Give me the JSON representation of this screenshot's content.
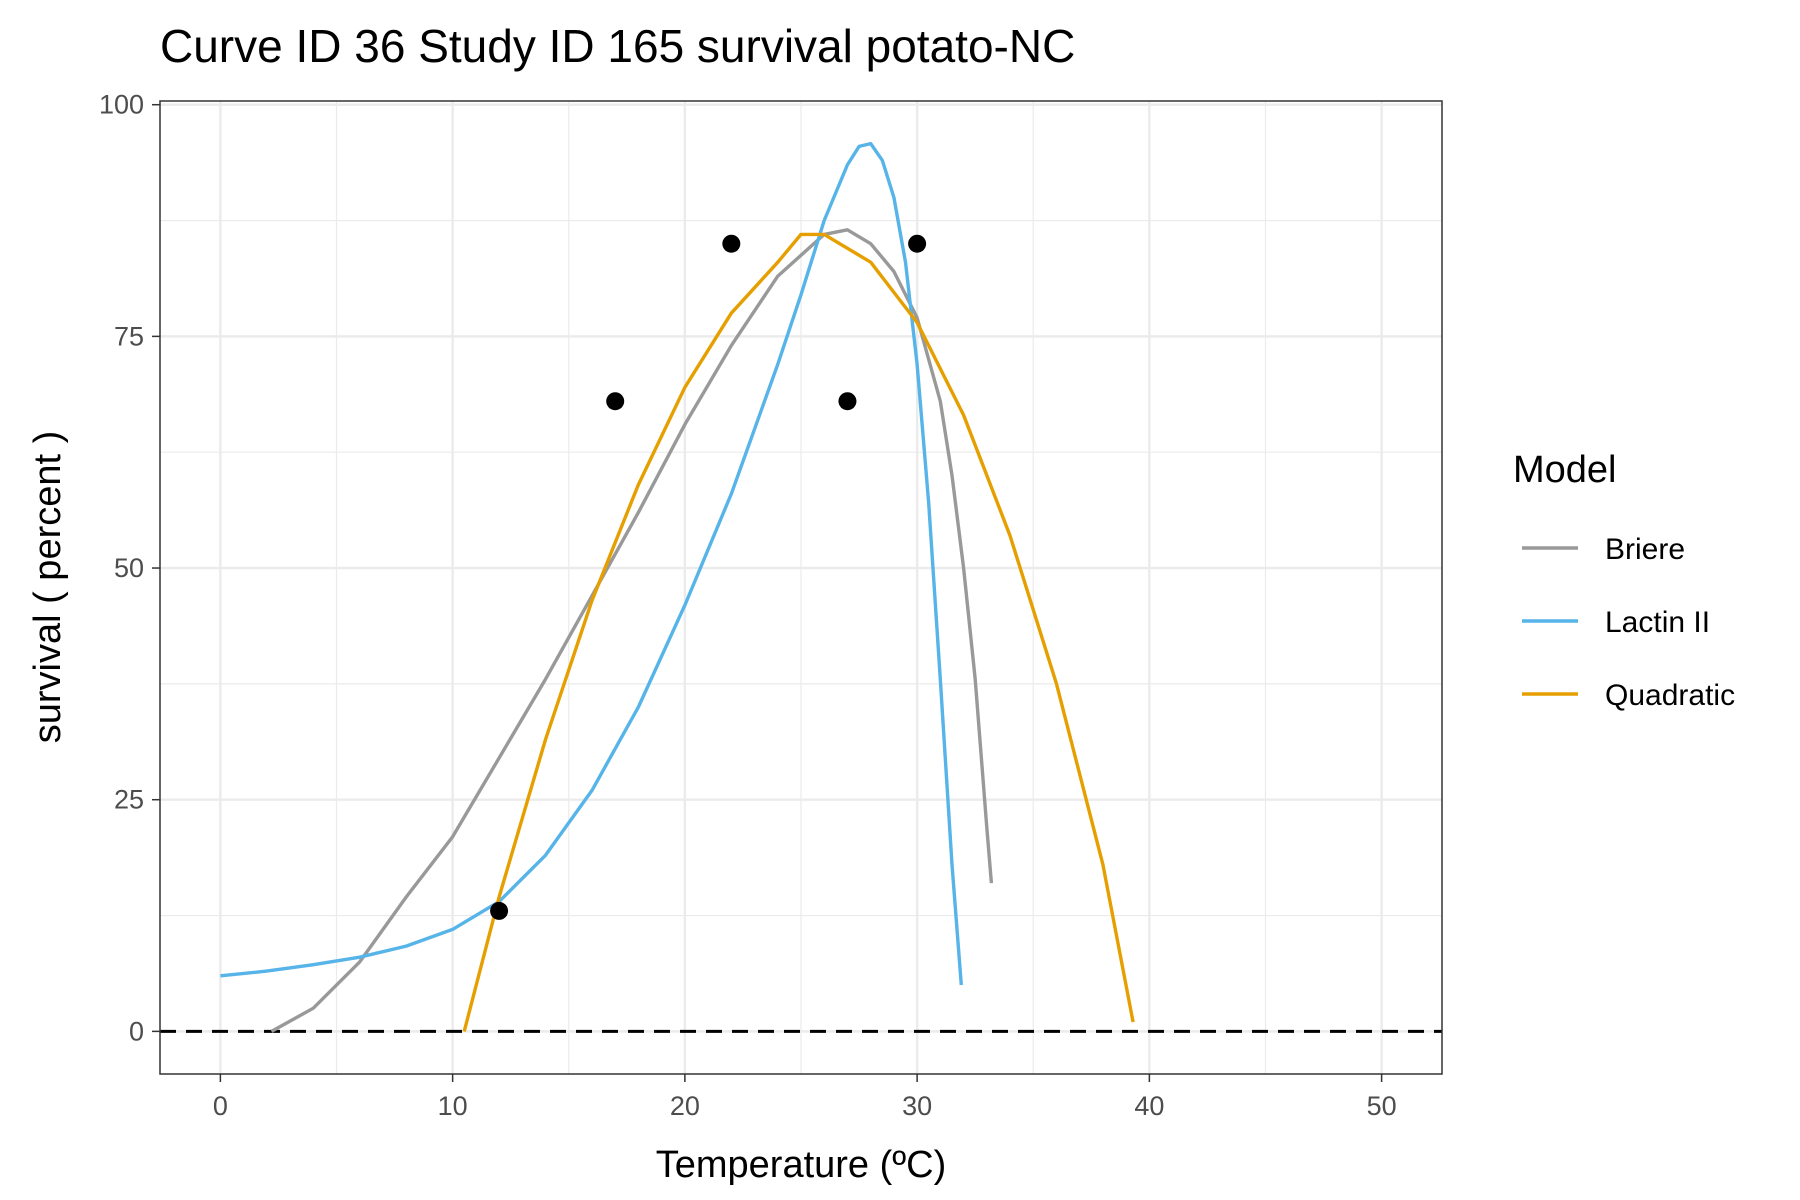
{
  "chart_data": {
    "type": "line",
    "title": "Curve ID 36 Study ID 165 survival potato-NC",
    "xlabel": "Temperature (ºC)",
    "ylabel": "survival ( percent )",
    "xlim": [
      -2.6,
      52.6
    ],
    "ylim": [
      -4.6,
      100.4
    ],
    "x_ticks": [
      0,
      10,
      20,
      30,
      40,
      50
    ],
    "y_ticks": [
      0,
      25,
      50,
      75,
      100
    ],
    "x_tick_labels": [
      "0",
      "10",
      "20",
      "30",
      "40",
      "50"
    ],
    "y_tick_labels": [
      "0",
      "25",
      "50",
      "75",
      "100"
    ],
    "grid": true,
    "reference_line": {
      "y": 0,
      "style": "dashed",
      "color": "#000000"
    },
    "legend": {
      "title": "Model",
      "position": "right",
      "entries": [
        {
          "label": "Briere",
          "color": "#999999"
        },
        {
          "label": "Lactin II",
          "color": "#56B4E9"
        },
        {
          "label": "Quadratic",
          "color": "#E69F00"
        }
      ]
    },
    "points": {
      "x": [
        12,
        17,
        22,
        27,
        30
      ],
      "y": [
        13,
        68,
        85,
        68,
        85
      ],
      "color": "#000000"
    },
    "series": [
      {
        "name": "Briere",
        "color": "#999999",
        "x": [
          2.2,
          4,
          6,
          8,
          10,
          12,
          14,
          16,
          18,
          20,
          22,
          24,
          26,
          27,
          28,
          29,
          30,
          31,
          31.5,
          32,
          32.5,
          33,
          33.2
        ],
        "y": [
          0,
          2.5,
          7.5,
          14.5,
          21,
          29.5,
          38,
          47,
          56,
          65.5,
          74,
          81.5,
          86,
          86.5,
          85,
          82,
          77,
          68,
          60,
          50,
          38,
          22,
          16
        ]
      },
      {
        "name": "Lactin II",
        "color": "#56B4E9",
        "x": [
          0,
          2,
          4,
          6,
          8,
          10,
          12,
          14,
          16,
          18,
          20,
          22,
          24,
          25,
          26,
          27,
          27.5,
          28,
          28.5,
          29,
          29.5,
          30,
          30.5,
          31,
          31.5,
          31.9
        ],
        "y": [
          6,
          6.5,
          7.2,
          8,
          9.2,
          11,
          14,
          19,
          26,
          35,
          46,
          58,
          72,
          79.5,
          87.5,
          93.5,
          95.5,
          95.8,
          94,
          90,
          83,
          72,
          57,
          38,
          18,
          5
        ]
      },
      {
        "name": "Quadratic",
        "color": "#E69F00",
        "x": [
          10.5,
          12,
          14,
          16,
          18,
          20,
          22,
          24,
          25,
          26,
          28,
          30,
          32,
          34,
          36,
          38,
          39.3
        ],
        "y": [
          0,
          14.5,
          31.5,
          46.5,
          59,
          69.5,
          77.5,
          83,
          86,
          86,
          83,
          76.5,
          66.5,
          53.5,
          37.5,
          18,
          1
        ]
      }
    ]
  }
}
